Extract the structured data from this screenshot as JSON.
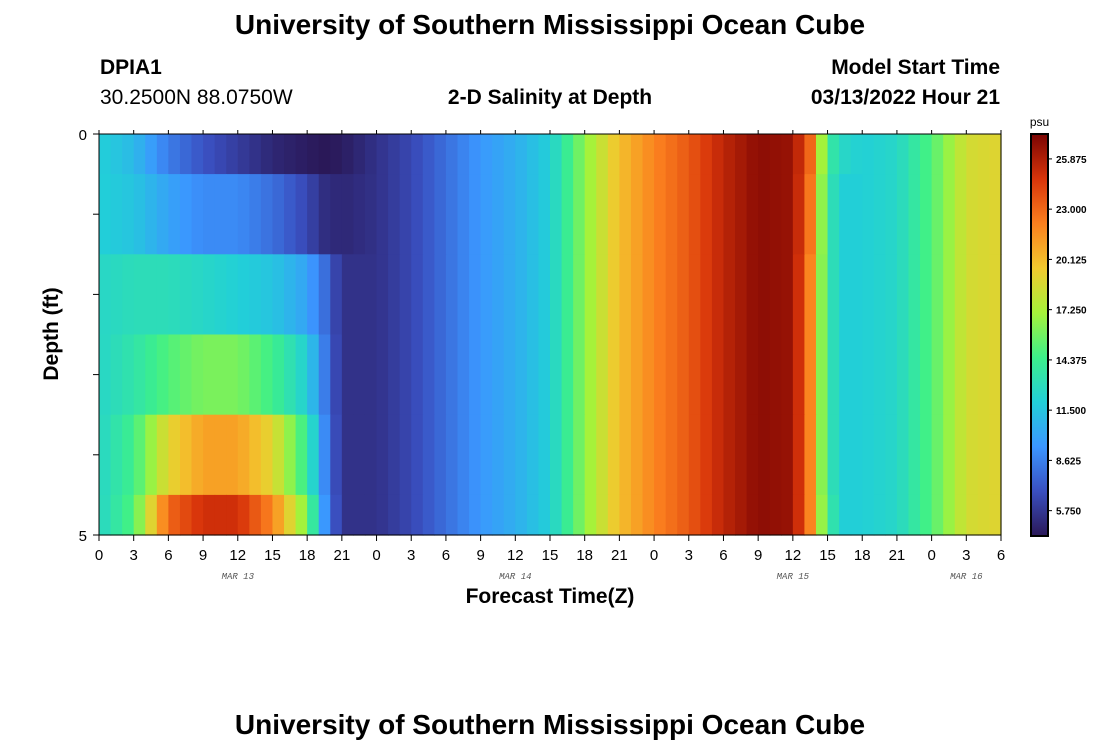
{
  "header": {
    "title": "University of Southern Mississippi Ocean Cube",
    "station": "DPIA1",
    "coords": "30.2500N  88.0750W",
    "subtitle": "2-D Salinity at Depth",
    "start_label": "Model Start Time",
    "start_value": "03/13/2022 Hour 21"
  },
  "footer": {
    "title": "University of Southern Mississippi Ocean Cube"
  },
  "colors": {
    "scale": [
      "#2a1858",
      "#3a4fc0",
      "#3b96ff",
      "#22cfd8",
      "#3df08a",
      "#a6f23a",
      "#f2c92e",
      "#fb7f1e",
      "#d8340a",
      "#7a0403"
    ]
  },
  "chart_data": {
    "type": "heatmap",
    "xlabel": "Forecast Time(Z)",
    "ylabel": "Depth (ft)",
    "ylim": [
      0,
      5
    ],
    "y_ticks": [
      "0",
      "5"
    ],
    "x_hour_ticks": [
      "0",
      "3",
      "6",
      "9",
      "12",
      "15",
      "18",
      "21",
      "0",
      "3",
      "6",
      "9",
      "12",
      "15",
      "18",
      "21",
      "0",
      "3",
      "6",
      "9",
      "12",
      "15",
      "18",
      "21",
      "0",
      "3",
      "6"
    ],
    "day_labels": [
      {
        "text": "MAR 13",
        "x_hours": 12
      },
      {
        "text": "MAR 14",
        "x_hours": 36
      },
      {
        "text": "MAR 15",
        "x_hours": 60
      },
      {
        "text": "MAR 16",
        "x_hours": 75
      }
    ],
    "colorbar": {
      "unit": "psu",
      "range": [
        4.3,
        27.3
      ],
      "ticks": [
        "25.875",
        "23.000",
        "20.125",
        "17.250",
        "14.375",
        "11.500",
        "8.625",
        "5.750"
      ]
    },
    "x_range_hours": [
      0,
      78
    ],
    "depth_layers_ft": [
      0,
      1,
      2,
      3,
      4,
      5
    ],
    "profile_knots": {
      "hours": [
        0,
        3,
        6,
        9,
        12,
        15,
        18,
        19.5,
        21,
        24,
        27,
        30,
        33,
        36,
        39,
        42,
        45,
        48,
        51,
        54,
        57,
        60,
        61.5,
        63,
        64.5,
        66,
        69,
        72,
        75,
        78
      ],
      "layers": [
        [
          12,
          11,
          8.5,
          7,
          6,
          5,
          4.5,
          4.3,
          4.5,
          5.5,
          6.5,
          8,
          9.5,
          10.5,
          12,
          16.5,
          20,
          22,
          23.5,
          25.5,
          26.8,
          26.5,
          23,
          14,
          12.5,
          12,
          12.5,
          15,
          18.5,
          19
        ],
        [
          12,
          11.5,
          10,
          9,
          9,
          8,
          6.5,
          5.3,
          5,
          5.5,
          6.5,
          8,
          9.5,
          10.5,
          12,
          16.5,
          20,
          22,
          23.5,
          25.5,
          26.8,
          26.5,
          22.5,
          13.5,
          12,
          12,
          12.5,
          15,
          18.5,
          19
        ],
        [
          12.5,
          13,
          13,
          12.5,
          12,
          11.5,
          10,
          8,
          5.5,
          5.5,
          6.5,
          8,
          9.5,
          10.5,
          12,
          16.5,
          20,
          22,
          23.5,
          25.5,
          26.8,
          26.5,
          22,
          13.5,
          12,
          12,
          12.5,
          15,
          18.5,
          19
        ],
        [
          12.5,
          13.5,
          15,
          16,
          16,
          14.5,
          12,
          8.5,
          5.5,
          5.5,
          6.5,
          8,
          9.5,
          10.5,
          12,
          16.5,
          20,
          22,
          23.5,
          25.5,
          26.8,
          26.5,
          22,
          13.5,
          12,
          12,
          12.5,
          15,
          18.5,
          19
        ],
        [
          12.5,
          14.5,
          19,
          21,
          21,
          19,
          14,
          9,
          5.5,
          5.5,
          6.5,
          8,
          9.5,
          10.5,
          12,
          16.5,
          20,
          22,
          23.5,
          25.5,
          26.8,
          26.5,
          22,
          13.5,
          12,
          12,
          12.5,
          15,
          18.5,
          19
        ],
        [
          12.5,
          15,
          23,
          25,
          25,
          22,
          16,
          9.5,
          5.5,
          5.5,
          6.5,
          8,
          9.5,
          10.5,
          12,
          16.5,
          20,
          22,
          23.5,
          25.5,
          26.8,
          26.5,
          22,
          14,
          12,
          12,
          12.5,
          15,
          18.5,
          19
        ]
      ]
    }
  }
}
